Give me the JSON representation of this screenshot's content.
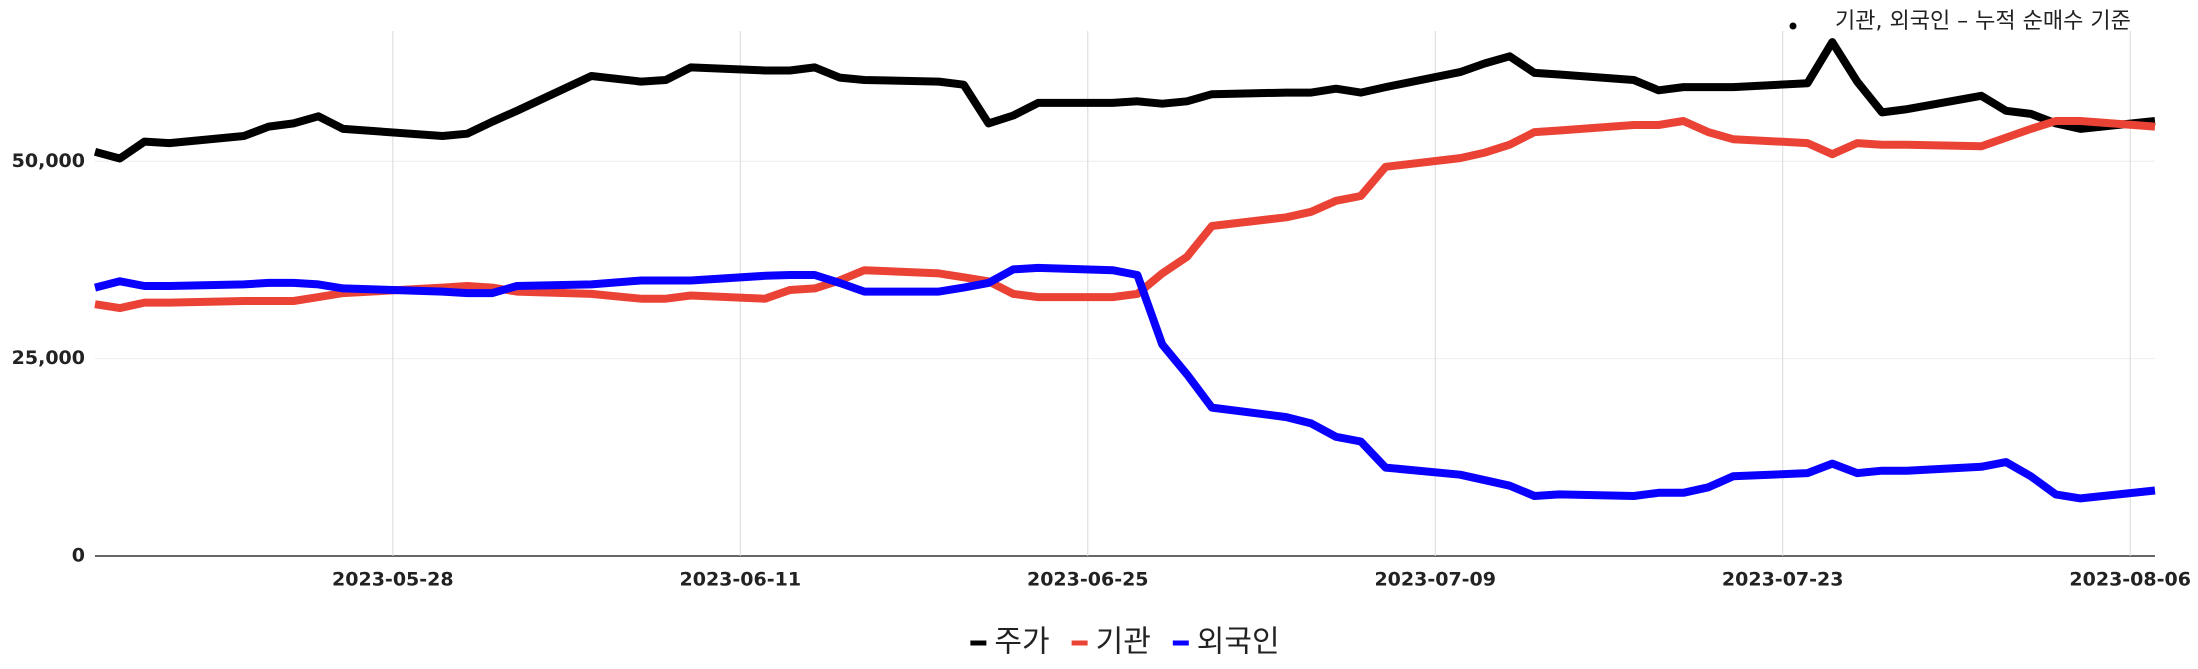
{
  "chart_data": {
    "type": "line",
    "annotation": "기관, 외국인 – 누적 순매수 기준",
    "x": [
      "2023-05-16",
      "2023-05-17",
      "2023-05-18",
      "2023-05-19",
      "2023-05-22",
      "2023-05-23",
      "2023-05-24",
      "2023-05-25",
      "2023-05-26",
      "2023-05-30",
      "2023-05-31",
      "2023-06-01",
      "2023-06-02",
      "2023-06-05",
      "2023-06-07",
      "2023-06-08",
      "2023-06-09",
      "2023-06-12",
      "2023-06-13",
      "2023-06-14",
      "2023-06-15",
      "2023-06-16",
      "2023-06-19",
      "2023-06-20",
      "2023-06-21",
      "2023-06-22",
      "2023-06-23",
      "2023-06-26",
      "2023-06-27",
      "2023-06-28",
      "2023-06-29",
      "2023-06-30",
      "2023-07-03",
      "2023-07-04",
      "2023-07-05",
      "2023-07-06",
      "2023-07-07",
      "2023-07-10",
      "2023-07-11",
      "2023-07-12",
      "2023-07-13",
      "2023-07-14",
      "2023-07-17",
      "2023-07-18",
      "2023-07-19",
      "2023-07-20",
      "2023-07-21",
      "2023-07-24",
      "2023-07-25",
      "2023-07-26",
      "2023-07-27",
      "2023-07-28",
      "2023-07-31",
      "2023-08-01",
      "2023-08-02",
      "2023-08-03",
      "2023-08-04",
      "2023-08-07"
    ],
    "xlim": [
      "2023-05-16",
      "2023-08-07"
    ],
    "xticks": [
      "2023-05-28",
      "2023-06-11",
      "2023-06-25",
      "2023-07-09",
      "2023-07-23",
      "2023-08-06"
    ],
    "ylim": [
      0,
      66000
    ],
    "yticks": [
      0,
      {
        "value": 25000,
        "label": "25,000"
      },
      {
        "value": 50000,
        "label": "50,000"
      }
    ],
    "grid": true,
    "legend": "bottom",
    "series": [
      {
        "name": "주가",
        "color": "#000000",
        "values": [
          51200,
          50350,
          52500,
          52300,
          53200,
          54400,
          54800,
          55700,
          54100,
          53200,
          53500,
          55000,
          56400,
          60800,
          60100,
          60300,
          61900,
          61500,
          61500,
          61900,
          60600,
          60300,
          60100,
          59700,
          54800,
          55800,
          57400,
          57400,
          57600,
          57300,
          57600,
          58500,
          58700,
          58700,
          59200,
          58700,
          59400,
          61300,
          62400,
          63300,
          61200,
          61000,
          60300,
          59000,
          59400,
          59400,
          59400,
          59900,
          65100,
          60100,
          56200,
          56600,
          58300,
          56400,
          56000,
          54800,
          54100,
          55100
        ]
      },
      {
        "name": "기관",
        "color": "#ea4335",
        "values": [
          31900,
          31400,
          32100,
          32100,
          32300,
          32300,
          32300,
          32800,
          33300,
          34000,
          34200,
          34000,
          33500,
          33200,
          32600,
          32600,
          33000,
          32600,
          33700,
          33900,
          34900,
          36200,
          35800,
          35300,
          34800,
          33200,
          32800,
          32800,
          33200,
          35800,
          37900,
          41800,
          42900,
          43600,
          45000,
          45600,
          49300,
          50400,
          51100,
          52100,
          53700,
          53900,
          54600,
          54600,
          55100,
          53700,
          52800,
          52300,
          50900,
          52300,
          52100,
          52100,
          51900,
          53000,
          54100,
          55100,
          55100,
          54400
        ]
      },
      {
        "name": "외국인",
        "color": "#0a00ff",
        "values": [
          34000,
          34800,
          34200,
          34200,
          34400,
          34600,
          34600,
          34400,
          33900,
          33500,
          33300,
          33300,
          34200,
          34400,
          34900,
          34900,
          34900,
          35500,
          35600,
          35600,
          34600,
          33500,
          33500,
          34000,
          34600,
          36300,
          36500,
          36200,
          35600,
          26800,
          23000,
          18800,
          17600,
          16800,
          15100,
          14500,
          11200,
          10300,
          9600,
          8900,
          7600,
          7800,
          7600,
          8000,
          8000,
          8700,
          10100,
          10500,
          11700,
          10500,
          10800,
          10800,
          11300,
          11900,
          10100,
          7800,
          7300,
          8300
        ]
      }
    ]
  }
}
